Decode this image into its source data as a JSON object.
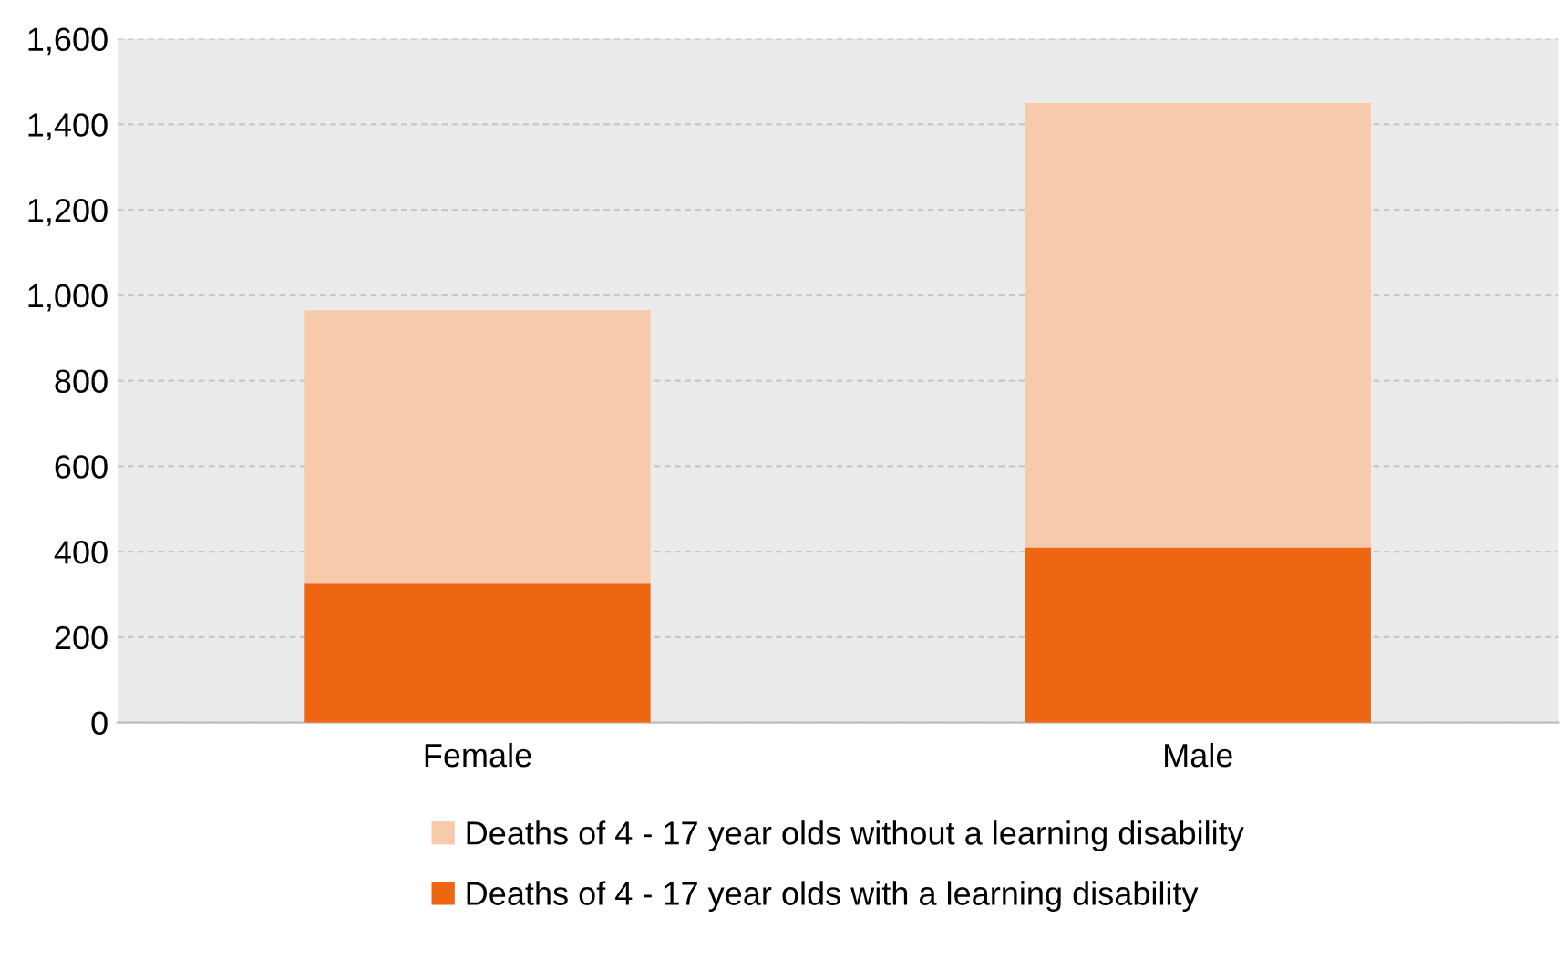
{
  "chart_data": {
    "type": "bar",
    "stacked": true,
    "categories": [
      "Female",
      "Male"
    ],
    "series": [
      {
        "name": "Deaths of 4 - 17 year olds with a learning disability",
        "color": "#ee6512",
        "values": [
          325,
          410
        ]
      },
      {
        "name": "Deaths of 4 - 17 year olds without a learning disability",
        "color": "#f7caac",
        "values": [
          640,
          1040
        ]
      }
    ],
    "ylim": [
      0,
      1600
    ],
    "yticks": [
      {
        "value": 0,
        "label": "0"
      },
      {
        "value": 200,
        "label": "200"
      },
      {
        "value": 400,
        "label": "400"
      },
      {
        "value": 600,
        "label": "600"
      },
      {
        "value": 800,
        "label": "800"
      },
      {
        "value": 1000,
        "label": "1,000"
      },
      {
        "value": 1200,
        "label": "1,200"
      },
      {
        "value": 1400,
        "label": "1,400"
      },
      {
        "value": 1600,
        "label": "1,600"
      }
    ],
    "grid": "y",
    "legend": "bottom"
  }
}
